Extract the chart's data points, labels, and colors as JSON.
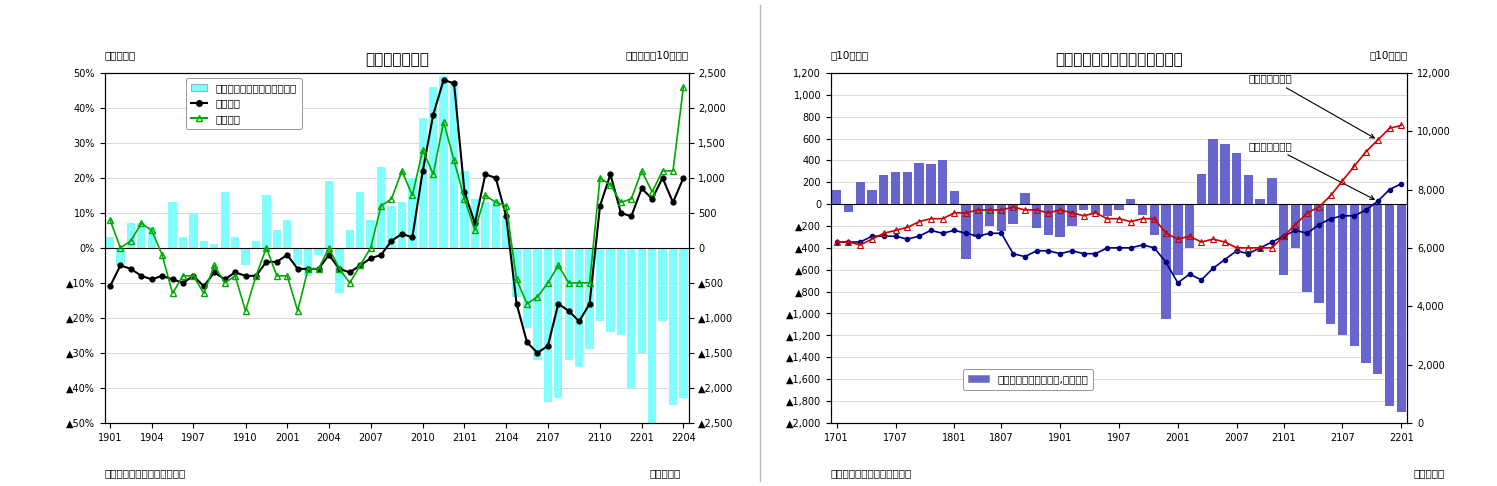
{
  "chart1": {
    "title": "貿易収支の推移",
    "ylabel_left": "（前年比）",
    "ylabel_right": "（前年差、10億円）",
    "xlabel": "（年・月）",
    "source": "（資料）財務省「貿易統計」",
    "ylim_left": [
      -0.5,
      0.5
    ],
    "ylim_right": [
      -2500,
      2500
    ],
    "yticks_left": [
      0.5,
      0.4,
      0.3,
      0.2,
      0.1,
      0.0,
      -0.1,
      -0.2,
      -0.3,
      -0.4,
      -0.5
    ],
    "yticks_right": [
      2500,
      2000,
      1500,
      1000,
      500,
      0,
      -500,
      -1000,
      -1500,
      -2000,
      -2500
    ],
    "ytick_labels_left": [
      "50%",
      "40%",
      "30%",
      "20%",
      "10%",
      "0%",
      "▲10%",
      "▲20%",
      "▲30%",
      "▲40%",
      "▲50%"
    ],
    "ytick_labels_right": [
      "2,500",
      "2,000",
      "1,500",
      "1,000",
      "500",
      "0",
      "▲500",
      "▲1,000",
      "▲1,500",
      "▲2,000",
      "▲2,500"
    ],
    "xtick_labels": [
      "1901",
      "1904",
      "1907",
      "1910",
      "2001",
      "2004",
      "2007",
      "2010",
      "2101",
      "2104",
      "2107",
      "2110",
      "2201",
      "2204"
    ],
    "bar_color": "#7fffff",
    "line1_color": "#000000",
    "line2_color": "#00aa00",
    "bar_data_y": [
      0.03,
      -0.05,
      0.07,
      0.07,
      0.06,
      0.0,
      0.13,
      0.03,
      0.1,
      0.02,
      0.01,
      0.16,
      0.03,
      -0.05,
      0.02,
      0.15,
      0.05,
      0.08,
      -0.05,
      -0.08,
      -0.02,
      0.19,
      -0.13,
      0.05,
      0.16,
      0.08,
      0.23,
      0.12,
      0.13,
      0.2,
      0.37,
      0.46,
      0.49,
      0.47,
      0.22,
      0.14,
      0.13,
      0.14,
      0.09,
      -0.14,
      -0.23,
      -0.32,
      -0.44,
      -0.43,
      -0.32,
      -0.34,
      -0.29,
      -0.21,
      -0.24,
      -0.25,
      -0.4,
      -0.3,
      -0.54,
      -0.21,
      -0.45,
      -0.43
    ],
    "line1_data_y": [
      -0.11,
      -0.05,
      -0.06,
      -0.08,
      -0.09,
      -0.08,
      -0.09,
      -0.1,
      -0.08,
      -0.11,
      -0.07,
      -0.09,
      -0.07,
      -0.08,
      -0.08,
      -0.04,
      -0.04,
      -0.02,
      -0.06,
      -0.06,
      -0.06,
      -0.02,
      -0.06,
      -0.07,
      -0.05,
      -0.03,
      -0.02,
      0.02,
      0.04,
      0.03,
      0.22,
      0.38,
      0.48,
      0.47,
      0.16,
      0.07,
      0.21,
      0.2,
      0.09,
      -0.16,
      -0.27,
      -0.3,
      -0.28,
      -0.16,
      -0.18,
      -0.21,
      -0.16,
      0.12,
      0.21,
      0.1,
      0.09,
      0.17,
      0.14,
      0.2,
      0.13,
      0.2
    ],
    "line2_data_y": [
      0.08,
      0.0,
      0.02,
      0.07,
      0.05,
      -0.02,
      -0.13,
      -0.08,
      -0.08,
      -0.13,
      -0.05,
      -0.1,
      -0.08,
      -0.18,
      -0.08,
      0.0,
      -0.08,
      -0.08,
      -0.18,
      -0.06,
      -0.06,
      0.0,
      -0.06,
      -0.1,
      -0.05,
      0.0,
      0.12,
      0.14,
      0.22,
      0.15,
      0.28,
      0.21,
      0.36,
      0.25,
      0.14,
      0.05,
      0.15,
      0.13,
      0.12,
      -0.09,
      -0.16,
      -0.14,
      -0.1,
      -0.05,
      -0.1,
      -0.1,
      -0.1,
      0.2,
      0.18,
      0.13,
      0.14,
      0.22,
      0.16,
      0.22,
      0.22,
      0.46
    ],
    "n_bars": 56,
    "legend_labels": [
      "貿易収支・前年差（右目盛）",
      "輸出金額",
      "輸入金額"
    ]
  },
  "chart2": {
    "title": "貿易収支（季節調整値）の推移",
    "ylabel_left": "（10億円）",
    "ylabel_right": "（10億円）",
    "xlabel": "（年・月）",
    "source": "（資料）財務省「貿易統計」",
    "ylim_left": [
      -2000,
      1200
    ],
    "ylim_right": [
      0,
      12000
    ],
    "yticks_left": [
      1200,
      1000,
      800,
      600,
      400,
      200,
      0,
      -200,
      -400,
      -600,
      -800,
      -1000,
      -1200,
      -1400,
      -1600,
      -1800,
      -2000
    ],
    "yticks_right": [
      12000,
      10000,
      8000,
      6000,
      4000,
      2000,
      0
    ],
    "ytick_labels_left": [
      "1,200",
      "1,000",
      "800",
      "600",
      "400",
      "200",
      "0",
      "▲200",
      "▲400",
      "▲600",
      "▲800",
      "▲1,000",
      "▲1,200",
      "▲1,400",
      "▲1,600",
      "▲1,800",
      "▲2,000"
    ],
    "ytick_labels_right": [
      "12,000",
      "10,000",
      "8,000",
      "6,000",
      "4,000",
      "2,000",
      "0"
    ],
    "xtick_labels": [
      "1701",
      "1707",
      "1801",
      "1807",
      "1901",
      "1907",
      "2001",
      "2007",
      "2101",
      "2107",
      "2201"
    ],
    "bar_color": "#6666cc",
    "line_export_color": "#000080",
    "line_import_color": "#cc0000",
    "bar_data_y": [
      130,
      -70,
      200,
      130,
      270,
      290,
      290,
      380,
      370,
      400,
      120,
      -500,
      -300,
      -200,
      -250,
      -180,
      100,
      -220,
      -280,
      -300,
      -200,
      -50,
      -90,
      -110,
      -50,
      50,
      -100,
      -280,
      -1050,
      -650,
      -400,
      280,
      600,
      550,
      470,
      270,
      50,
      240,
      -650,
      -400,
      -800,
      -900,
      -1100,
      -1200,
      -1300,
      -1450,
      -1550,
      -1850,
      -1900
    ],
    "export_data_y": [
      6200,
      6200,
      6200,
      6400,
      6400,
      6400,
      6300,
      6400,
      6600,
      6500,
      6600,
      6500,
      6400,
      6500,
      6500,
      5800,
      5700,
      5900,
      5900,
      5800,
      5900,
      5800,
      5800,
      6000,
      6000,
      6000,
      6100,
      6000,
      5500,
      4800,
      5100,
      4900,
      5300,
      5600,
      5900,
      5800,
      6000,
      6200,
      6400,
      6600,
      6500,
      6800,
      7000,
      7100,
      7100,
      7300,
      7600,
      8000,
      8200
    ],
    "import_data_y": [
      6200,
      6200,
      6100,
      6300,
      6500,
      6600,
      6700,
      6900,
      7000,
      7000,
      7200,
      7200,
      7300,
      7300,
      7300,
      7400,
      7300,
      7300,
      7200,
      7300,
      7200,
      7100,
      7200,
      7000,
      7000,
      6900,
      7000,
      7000,
      6500,
      6300,
      6400,
      6200,
      6300,
      6200,
      6000,
      6000,
      6000,
      6000,
      6400,
      6800,
      7200,
      7400,
      7800,
      8300,
      8800,
      9300,
      9700,
      10100,
      10200
    ],
    "bar_n": 49,
    "annotation_import": "輸入（右目盛）",
    "annotation_export": "輸出（右目盛）",
    "legend_label": "貿易収支（季節調整値,左目盛）"
  },
  "bg_color": "#ffffff",
  "divider_color": "#bbbbbb"
}
